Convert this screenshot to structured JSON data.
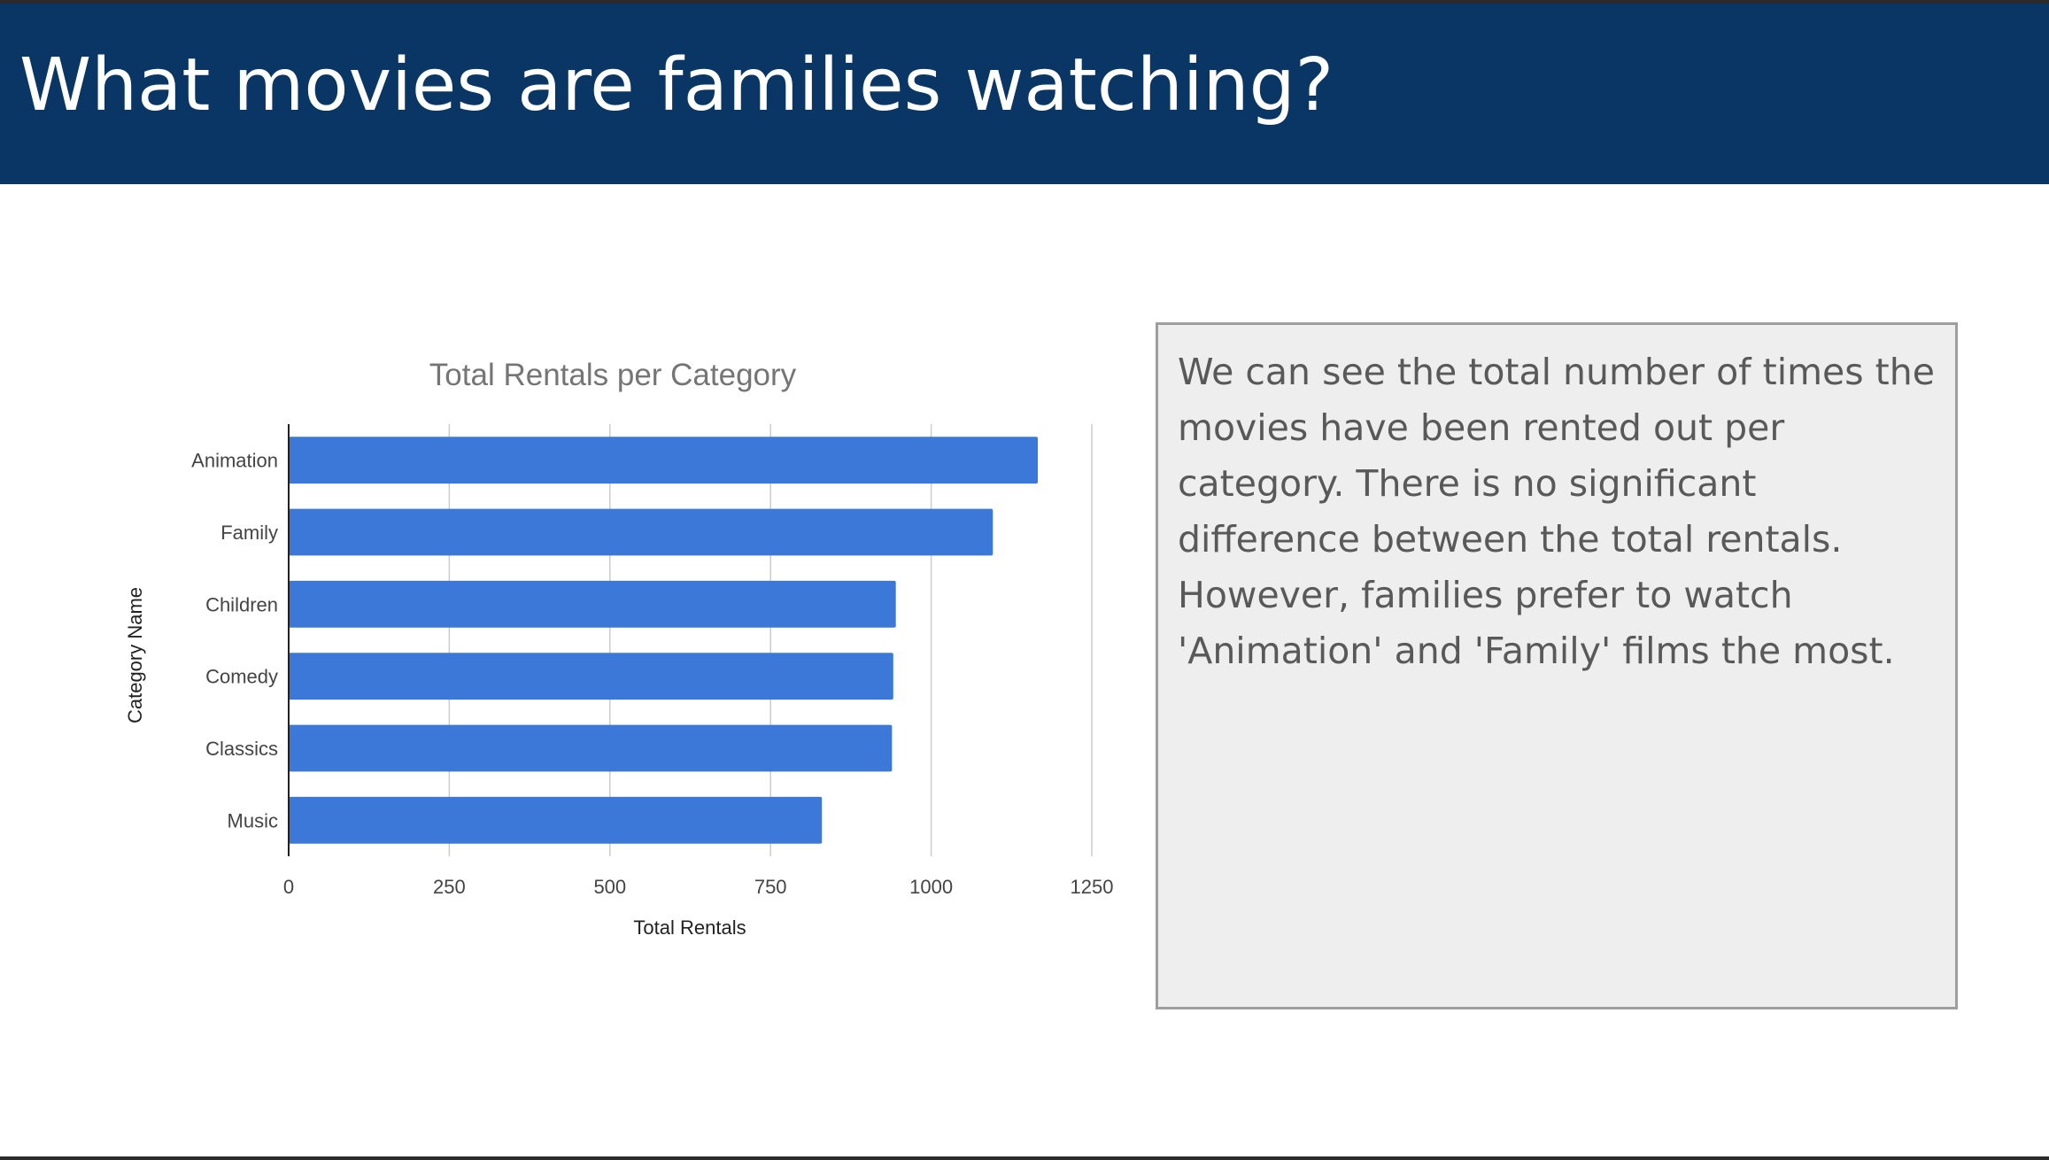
{
  "slide": {
    "title": "What movies are families watching?",
    "description": "We can see the total number of times the movies have been rented out per category. There is no significant difference between the total rentals. However, families prefer to watch 'Animation' and 'Family' films the most."
  },
  "colors": {
    "header_background": "#093664",
    "bar": "#3c78d8",
    "text_box_background": "#eeeeee"
  },
  "chart_data": {
    "type": "bar",
    "orientation": "horizontal",
    "title": "Total Rentals per Category",
    "xlabel": "Total Rentals",
    "ylabel": "Category Name",
    "categories": [
      "Animation",
      "Family",
      "Children",
      "Comedy",
      "Classics",
      "Music"
    ],
    "values": [
      1166,
      1096,
      945,
      941,
      939,
      830
    ],
    "xlim": [
      0,
      1250
    ],
    "xticks": [
      "0",
      "250",
      "500",
      "750",
      "1000",
      "1250"
    ],
    "grid": true,
    "legend": "none"
  }
}
